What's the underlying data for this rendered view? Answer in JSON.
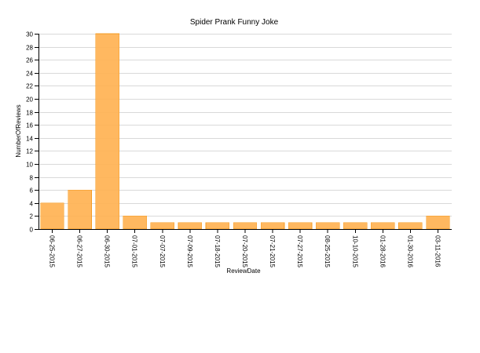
{
  "chart_data": {
    "type": "bar",
    "title": "Spider Prank Funny Joke",
    "xlabel": "ReviewDate",
    "ylabel": "NumberOfReviews",
    "categories": [
      "06-25-2015",
      "06-27-2015",
      "06-30-2015",
      "07-01-2015",
      "07-07-2015",
      "07-09-2015",
      "07-18-2015",
      "07-20-2015",
      "07-21-2015",
      "07-27-2015",
      "08-25-2015",
      "10-10-2015",
      "01-28-2016",
      "01-30-2016",
      "03-11-2016"
    ],
    "values": [
      4,
      6,
      30,
      2,
      1,
      1,
      1,
      1,
      1,
      1,
      1,
      1,
      1,
      1,
      2
    ],
    "ylim": [
      0,
      30
    ],
    "yticks": [
      0,
      2,
      4,
      6,
      8,
      10,
      12,
      14,
      16,
      18,
      20,
      22,
      24,
      26,
      28,
      30
    ],
    "grid": true,
    "bar_color": "#ffb04f"
  }
}
